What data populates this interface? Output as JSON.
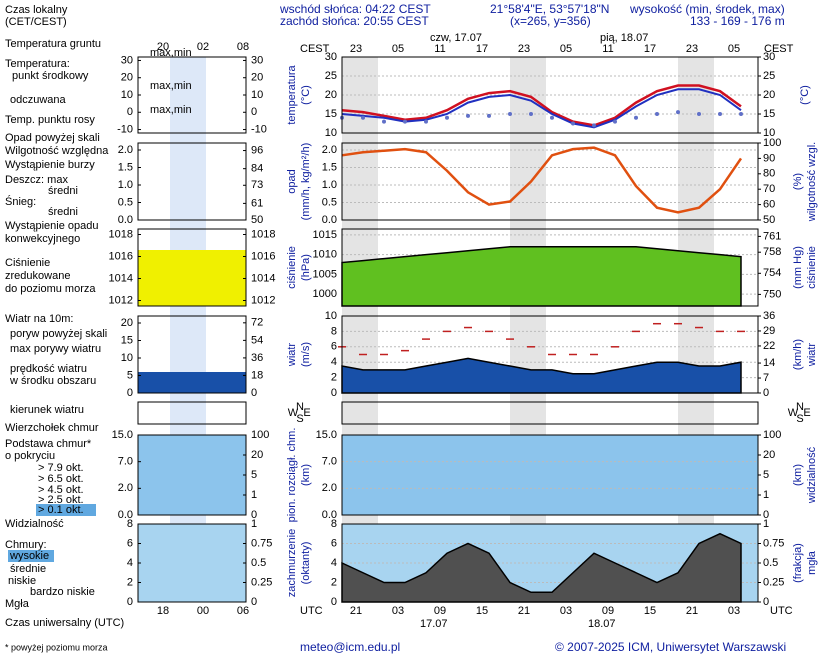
{
  "header": {
    "local_time": [
      "Czas lokalny",
      "(CET/CEST)"
    ],
    "sunrise": "wschód słońca: 04:22 CEST",
    "sunset": "zachód słońca: 20:55 CEST",
    "coords": "21°58'4\"E, 53°57'18\"N",
    "grid": "(x=265, y=356)",
    "elev_title": "wysokość (min, środek, max)",
    "elev": "133 - 169 - 176 m"
  },
  "time": {
    "local_label": "CEST",
    "local_hours": [
      "23",
      "05",
      "11",
      "17",
      "23",
      "05",
      "11",
      "17",
      "23",
      "05"
    ],
    "days": [
      "czw, 17.07",
      "pią, 18.07"
    ],
    "utc_label": "UTC",
    "utc_hours": [
      "21",
      "03",
      "09",
      "15",
      "21",
      "03",
      "09",
      "15",
      "21",
      "03"
    ],
    "utc_days": [
      "17.07",
      "18.07"
    ],
    "mini_local": [
      "20",
      "02",
      "08"
    ],
    "mini_utc": [
      "18",
      "00",
      "06"
    ]
  },
  "legend": [
    "Temperatura gruntu",
    "max,min",
    "Temperatura:",
    "punkt środkowy",
    "max,min",
    "odczuwana",
    "max,min",
    "Temp. punktu rosy",
    "Opad powyżej skali",
    "Wilgotność względna",
    "Wystąpienie burzy",
    "Deszcz: max",
    "średni",
    "Śnieg:",
    "średni",
    "Wystąpienie opadu",
    "konwekcyjnego",
    "Ciśnienie",
    "zredukowane",
    "do poziomu morza",
    "Wiatr na 10m:",
    "poryw powyżej skali",
    "max porywy wiatru",
    "prędkość wiatru",
    "w środku obszaru",
    "kierunek wiatru",
    "Wierzchołek chmur",
    "Podstawa chmur*",
    "o pokryciu",
    "> 7.9 okt.",
    "> 6.5 okt.",
    "> 4.5 okt.",
    "> 2.5 okt.",
    "> 0.1 okt.",
    "Widzialność",
    "Chmury:",
    "wysokie",
    "średnie",
    "niskie",
    "bardzo niskie",
    "Mgła",
    "Czas uniwersalny (UTC)"
  ],
  "compass": [
    "N",
    "W",
    "E",
    "S"
  ],
  "x": [
    0,
    3,
    6,
    9,
    12,
    15,
    18,
    21,
    24,
    27,
    30,
    33,
    36,
    39,
    42,
    45,
    48,
    51,
    54,
    57
  ],
  "panels": [
    {
      "label_left": [
        "temperatura",
        "(°C)"
      ],
      "label_right": [
        "(°C)"
      ],
      "ylim": [
        10,
        30
      ],
      "yticks": [
        30,
        25,
        20,
        15,
        10
      ],
      "y2lim": [
        10,
        30
      ],
      "y2ticks": [
        30,
        25,
        20,
        15,
        10
      ],
      "mini": {
        "ylim": [
          -12,
          32
        ],
        "yticks": [
          30,
          20,
          10,
          0,
          -10
        ],
        "y2lim": [
          -12,
          32
        ],
        "y2ticks": [
          30,
          20,
          10,
          0,
          -10
        ]
      },
      "series": [
        {
          "type": "line",
          "color": "#d01020",
          "values": [
            16,
            15.5,
            14.5,
            13.5,
            14,
            16,
            19,
            20.5,
            21,
            19.5,
            15.5,
            13,
            12,
            14,
            18,
            21,
            22.5,
            22.5,
            21,
            17
          ]
        },
        {
          "type": "line",
          "color": "#2030c0",
          "values": [
            15,
            14.5,
            14,
            13,
            13.5,
            15,
            18,
            19.5,
            20,
            18.5,
            15,
            12.5,
            11.5,
            13.5,
            17,
            20,
            21.5,
            21.5,
            20,
            16
          ]
        },
        {
          "type": "dots",
          "color": "#6070c8",
          "values": [
            14,
            14,
            13,
            13,
            13,
            14,
            14.5,
            14.5,
            15,
            15,
            14,
            12.5,
            12,
            13,
            14,
            15,
            15.5,
            15,
            15,
            15
          ]
        }
      ]
    },
    {
      "label_left": [
        "opad",
        "(mm/h, kg/m²/h)"
      ],
      "label_right": [
        "(%)",
        "wilgotność wzgl."
      ],
      "ylim": [
        0,
        2.2
      ],
      "yticks": [
        {
          "value": 2.0,
          "label": "2.0"
        },
        1.5,
        {
          "value": 1.0,
          "label": "1.0"
        },
        0.5,
        {
          "value": 0.0,
          "label": "0.0"
        }
      ],
      "y2lim": [
        50,
        100
      ],
      "y2ticks": [
        100,
        90,
        80,
        70,
        60,
        50
      ],
      "mini": {
        "ylim": [
          0,
          2.2
        ],
        "yticks": [
          {
            "value": 2.0,
            "label": "2.0"
          },
          1.5,
          {
            "value": 1.0,
            "label": "1.0"
          },
          0.5,
          {
            "value": 0.0,
            "label": "0.0"
          }
        ],
        "y2lim": [
          50,
          101
        ],
        "y2ticks": [
          96,
          84,
          73,
          61,
          50
        ]
      },
      "series": [
        {
          "type": "line",
          "axis": "y2",
          "color": "#e05010",
          "values": [
            92,
            94,
            95,
            96,
            94,
            82,
            68,
            60,
            62,
            75,
            92,
            96,
            97,
            92,
            72,
            58,
            55,
            58,
            70,
            90
          ]
        }
      ]
    },
    {
      "label_left": [
        "ciśnienie",
        "(hPa)"
      ],
      "label_right": [
        "(mm Hg)",
        "ciśnienie"
      ],
      "ylim": [
        997,
        1016.5
      ],
      "yticks": [
        1015,
        1010,
        1005,
        1000
      ],
      "y2lim": [
        747.8,
        762.4
      ],
      "y2ticks": [
        761,
        758,
        754,
        750
      ],
      "mini": {
        "ylim": [
          1011.5,
          1018.5
        ],
        "yticks": [
          1018,
          1016,
          1014,
          1012
        ],
        "y2lim": [
          1011.5,
          1018.5
        ],
        "y2ticks": [
          1018,
          1016,
          1014,
          1012
        ]
      },
      "series": [
        {
          "type": "area",
          "color": "#60c020",
          "values": [
            1008,
            1008.5,
            1009,
            1009.5,
            1010,
            1010.5,
            1011,
            1011.5,
            1012,
            1012,
            1012,
            1012,
            1012,
            1012,
            1012,
            1011.5,
            1011,
            1010.5,
            1010,
            1009.5
          ]
        }
      ]
    },
    {
      "label_left": [
        "wiatr",
        "(m/s)"
      ],
      "label_right": [
        "(km/h)",
        "wiatr"
      ],
      "ylim": [
        0,
        10
      ],
      "yticks": [
        10,
        8,
        6,
        4,
        2,
        0
      ],
      "y2lim": [
        0,
        36
      ],
      "y2ticks": [
        36,
        29,
        22,
        14,
        7,
        0
      ],
      "mini": {
        "ylim": [
          0,
          22
        ],
        "yticks": [
          20,
          15,
          10,
          5,
          0
        ],
        "y2lim": [
          0,
          79
        ],
        "y2ticks": [
          72,
          54,
          36,
          18,
          0
        ]
      },
      "series": [
        {
          "type": "area",
          "color": "#1850a8",
          "values": [
            3.5,
            3,
            3,
            3,
            3.5,
            4,
            4.5,
            4,
            3.5,
            3,
            3,
            2.5,
            2.5,
            3,
            3.5,
            4,
            4,
            3.5,
            3.5,
            4
          ]
        },
        {
          "type": "dash",
          "color": "#c02020",
          "values": [
            6,
            5,
            5,
            5.5,
            7,
            8,
            8.5,
            8,
            7,
            6,
            5,
            5,
            5,
            6,
            8,
            9,
            9,
            8.5,
            8,
            8
          ]
        }
      ]
    },
    {
      "label_left": [],
      "label_right": []
    },
    {
      "label_left": [
        "pion. rozciągł. chm.",
        "(km)"
      ],
      "label_right": [
        "(km)",
        "widzialność"
      ],
      "yticks": [
        {
          "value": 15.0,
          "label": "15.0"
        },
        {
          "value": 7.0,
          "label": "7.0"
        },
        {
          "value": 2.0,
          "label": "2.0"
        },
        {
          "value": 0.0,
          "label": "0.0"
        }
      ],
      "y2ticks": [
        100,
        20,
        5,
        1,
        0
      ],
      "mini": {
        "yticks": [
          {
            "value": 15.0,
            "label": "15.0"
          },
          {
            "value": 7.0,
            "label": "7.0"
          },
          {
            "value": 2.0,
            "label": "2.0"
          },
          {
            "value": 0.0,
            "label": "0.0"
          }
        ],
        "y2ticks": [
          100,
          20,
          5,
          1,
          0
        ]
      }
    },
    {
      "label_left": [
        "zachmurzenie",
        "(oktanty)"
      ],
      "label_right": [
        "(frakcja)",
        "mgła"
      ],
      "ylim": [
        0,
        8
      ],
      "yticks": [
        8,
        6,
        4,
        2,
        0
      ],
      "y2lim": [
        0,
        1
      ],
      "y2ticks": [
        1,
        0.75,
        0.5,
        0.25,
        0
      ],
      "mini": {
        "ylim": [
          0,
          8
        ],
        "yticks": [
          8,
          6,
          4,
          2,
          0
        ],
        "y2lim": [
          0,
          1
        ],
        "y2ticks": [
          1,
          0.75,
          0.5,
          0.25,
          0
        ]
      },
      "series": [
        {
          "type": "area",
          "color": "#505050",
          "values": [
            4,
            3,
            2,
            2,
            3,
            5,
            6,
            5,
            2,
            1,
            1,
            3,
            5,
            4,
            3,
            2,
            3,
            6,
            7,
            6
          ]
        }
      ]
    }
  ],
  "footer": {
    "note": "* powyżej poziomu morza",
    "email": "meteo@icm.edu.pl",
    "copyright": "© 2007-2025 ICM, Uniwersytet Warszawski"
  }
}
